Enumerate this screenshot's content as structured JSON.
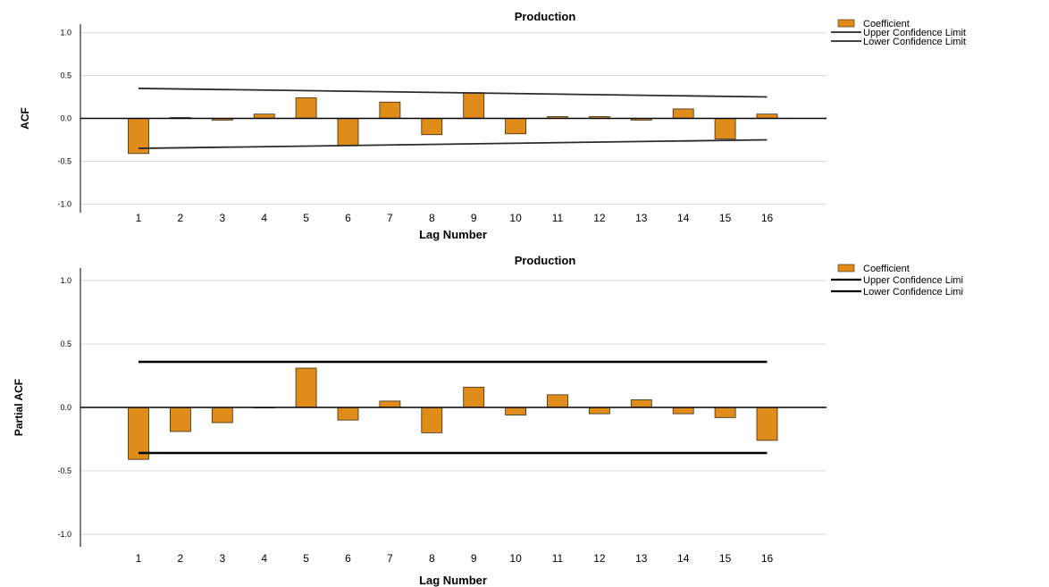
{
  "chart_data": [
    {
      "type": "bar",
      "title": "Production",
      "xlabel": "Lag Number",
      "ylabel": "ACF",
      "ylim": [
        -1.1,
        1.1
      ],
      "yticks": [
        "1.0",
        "0.5",
        "0.0",
        "-0.5",
        "-1.0"
      ],
      "categories": [
        "1",
        "2",
        "3",
        "4",
        "5",
        "6",
        "7",
        "8",
        "9",
        "10",
        "11",
        "12",
        "13",
        "14",
        "15",
        "16"
      ],
      "series": [
        {
          "name": "Coefficient",
          "values": [
            -0.41,
            0.01,
            -0.02,
            0.05,
            0.24,
            -0.32,
            0.19,
            -0.19,
            0.3,
            -0.18,
            0.02,
            0.02,
            -0.02,
            0.11,
            -0.24,
            0.05
          ]
        }
      ],
      "confidence": {
        "upper": {
          "name": "Upper Confidence Limit",
          "from": 0.35,
          "to": 0.25
        },
        "lower": {
          "name": "Lower Confidence Limit",
          "from": -0.35,
          "to": -0.25
        }
      },
      "legend": [
        "Coefficient",
        "Upper Confidence Limit",
        "Lower Confidence Limit"
      ],
      "legend_position": "top-right",
      "grid": true,
      "colors": {
        "bar": "#e08c1a",
        "bar_edge": "#3a2a10",
        "line": "#2b2b2b",
        "grid": "#d9d9d9"
      }
    },
    {
      "type": "bar",
      "title": "Production",
      "xlabel": "Lag Number",
      "ylabel": "Partial ACF",
      "ylim": [
        -1.1,
        1.1
      ],
      "yticks": [
        "1.0",
        "0.5",
        "0.0",
        "-0.5",
        "-1.0"
      ],
      "categories": [
        "1",
        "2",
        "3",
        "4",
        "5",
        "6",
        "7",
        "8",
        "9",
        "10",
        "11",
        "12",
        "13",
        "14",
        "15",
        "16"
      ],
      "series": [
        {
          "name": "Coefficient",
          "values": [
            -0.41,
            -0.19,
            -0.12,
            0.0,
            0.31,
            -0.1,
            0.05,
            -0.2,
            0.16,
            -0.06,
            0.1,
            -0.05,
            0.06,
            -0.05,
            -0.08,
            -0.26
          ]
        }
      ],
      "confidence": {
        "upper": {
          "name": "Upper Confidence Limit",
          "from": 0.36,
          "to": 0.36
        },
        "lower": {
          "name": "Lower Confidence Limit",
          "from": -0.36,
          "to": -0.36
        }
      },
      "legend": [
        "Coefficient",
        "Upper Confidence Limi",
        "Lower Confidence Limi"
      ],
      "legend_position": "top-right",
      "grid": true,
      "colors": {
        "bar": "#e08c1a",
        "bar_edge": "#3a2a10",
        "line": "#000000",
        "grid": "#d9d9d9"
      }
    }
  ]
}
